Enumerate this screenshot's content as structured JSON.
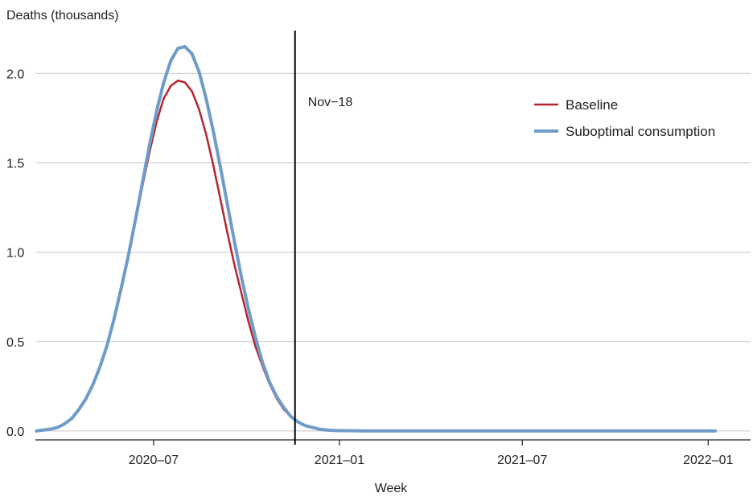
{
  "chart_data": {
    "type": "line",
    "title": "",
    "ylabel": "Deaths (thousands)",
    "xlabel": "Week",
    "ylim": [
      -0.05,
      2.24
    ],
    "xlim": [
      "2020-03-06",
      "2022-02-12"
    ],
    "y_ticks": [
      {
        "value": 0.0,
        "label": "0.0"
      },
      {
        "value": 0.5,
        "label": "0.5"
      },
      {
        "value": 1.0,
        "label": "1.0"
      },
      {
        "value": 1.5,
        "label": "1.5"
      },
      {
        "value": 2.0,
        "label": "2.0"
      }
    ],
    "x_ticks": [
      {
        "value": "2020-07-01",
        "label": "2020–07"
      },
      {
        "value": "2021-01-01",
        "label": "2021–01"
      },
      {
        "value": "2021-07-01",
        "label": "2021–07"
      },
      {
        "value": "2022-01-01",
        "label": "2022–01"
      }
    ],
    "grid": "horizontal",
    "legend_position": "top-right",
    "annotation": {
      "date": "2020-11-18",
      "label": "Nov−18"
    },
    "x": [
      "2020-03-07",
      "2020-03-14",
      "2020-03-21",
      "2020-03-28",
      "2020-04-04",
      "2020-04-11",
      "2020-04-18",
      "2020-04-25",
      "2020-05-02",
      "2020-05-09",
      "2020-05-16",
      "2020-05-23",
      "2020-05-30",
      "2020-06-06",
      "2020-06-13",
      "2020-06-20",
      "2020-06-27",
      "2020-07-04",
      "2020-07-11",
      "2020-07-18",
      "2020-07-25",
      "2020-08-01",
      "2020-08-08",
      "2020-08-15",
      "2020-08-22",
      "2020-08-29",
      "2020-09-05",
      "2020-09-12",
      "2020-09-19",
      "2020-09-26",
      "2020-10-03",
      "2020-10-10",
      "2020-10-17",
      "2020-10-24",
      "2020-10-31",
      "2020-11-07",
      "2020-11-14",
      "2020-11-21",
      "2020-11-28",
      "2020-12-05",
      "2020-12-12",
      "2020-12-19",
      "2020-12-26",
      "2021-01-02",
      "2021-01-09",
      "2021-01-16",
      "2021-01-23",
      "2021-01-30",
      "2021-02-06",
      "2021-02-13",
      "2021-02-20",
      "2021-02-27",
      "2021-03-06",
      "2021-04-03",
      "2021-05-01",
      "2021-06-05",
      "2021-07-03",
      "2021-08-07",
      "2021-09-04",
      "2021-10-02",
      "2021-11-06",
      "2021-12-04",
      "2022-01-01",
      "2022-01-08"
    ],
    "series": [
      {
        "name": "Baseline",
        "color": "#b5252e",
        "values": [
          0.0,
          0.005,
          0.01,
          0.02,
          0.04,
          0.07,
          0.12,
          0.18,
          0.26,
          0.36,
          0.48,
          0.63,
          0.8,
          0.98,
          1.17,
          1.37,
          1.56,
          1.73,
          1.86,
          1.93,
          1.96,
          1.95,
          1.9,
          1.8,
          1.66,
          1.49,
          1.3,
          1.11,
          0.93,
          0.77,
          0.61,
          0.47,
          0.36,
          0.26,
          0.18,
          0.12,
          0.08,
          0.05,
          0.03,
          0.02,
          0.01,
          0.005,
          0.003,
          0.002,
          0.001,
          0.001,
          0.0,
          0.0,
          0.0,
          0.0,
          0.0,
          0.0,
          0.0,
          0.0,
          0.0,
          0.0,
          0.0,
          0.0,
          0.0,
          0.0,
          0.0,
          0.0,
          0.0,
          0.0
        ]
      },
      {
        "name": "Suboptimal consumption",
        "color": "#6f9bc9",
        "values": [
          0.0,
          0.005,
          0.01,
          0.02,
          0.04,
          0.07,
          0.12,
          0.18,
          0.26,
          0.36,
          0.48,
          0.63,
          0.8,
          0.98,
          1.18,
          1.39,
          1.6,
          1.79,
          1.95,
          2.07,
          2.14,
          2.15,
          2.11,
          2.01,
          1.86,
          1.68,
          1.48,
          1.27,
          1.06,
          0.86,
          0.68,
          0.52,
          0.38,
          0.27,
          0.19,
          0.13,
          0.08,
          0.05,
          0.03,
          0.02,
          0.01,
          0.005,
          0.003,
          0.002,
          0.001,
          0.001,
          0.0,
          0.0,
          0.0,
          0.0,
          0.0,
          0.0,
          0.0,
          0.0,
          0.0,
          0.0,
          0.0,
          0.0,
          0.0,
          0.0,
          0.0,
          0.0,
          0.0,
          0.0
        ]
      }
    ]
  }
}
